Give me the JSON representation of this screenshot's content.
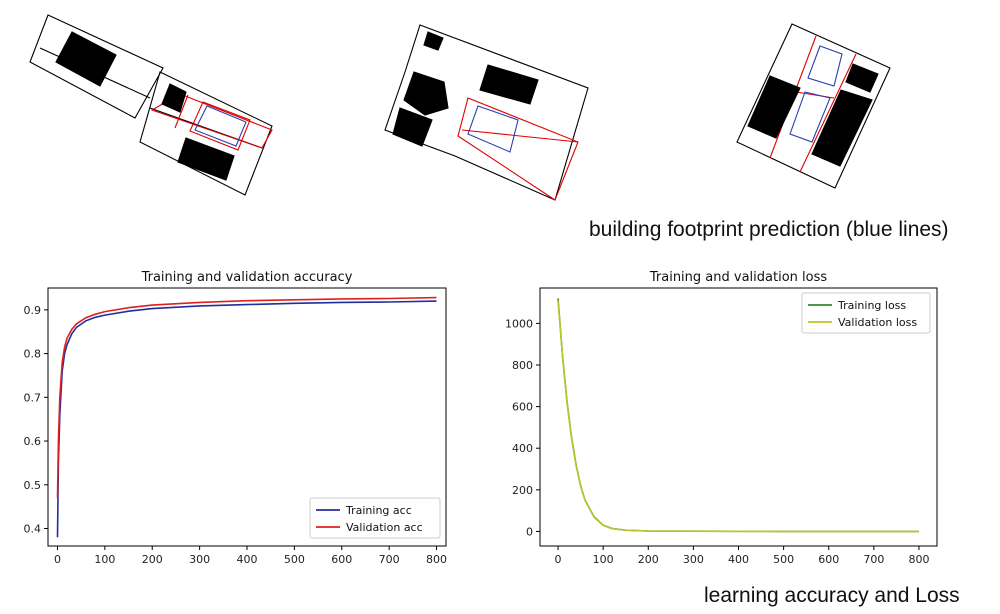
{
  "captions": {
    "footprint": "building footprint prediction (blue lines)",
    "learning": "learning accuracy and Loss"
  },
  "colors": {
    "parcel": "#000000",
    "prediction": "#2a3fb0",
    "lot": "#e00000",
    "building": "#000000",
    "training_acc": "#1f2f9c",
    "validation_acc": "#e02020",
    "training_loss": "#2e8b2e",
    "validation_loss": "#bcc62a"
  },
  "chart_data": [
    {
      "type": "line",
      "title": "Training and validation accuracy",
      "xlabel": "",
      "ylabel": "",
      "xlim": [
        -20,
        820
      ],
      "ylim": [
        0.36,
        0.95
      ],
      "xticks": [
        0,
        100,
        200,
        300,
        400,
        500,
        600,
        700,
        800
      ],
      "yticks": [
        0.4,
        0.5,
        0.6,
        0.7,
        0.8,
        0.9
      ],
      "legend": "lower-right",
      "series": [
        {
          "name": "Training acc",
          "color": "#1f2f9c",
          "x": [
            0,
            2,
            5,
            10,
            15,
            20,
            30,
            40,
            60,
            80,
            100,
            150,
            200,
            300,
            400,
            500,
            600,
            700,
            800
          ],
          "y": [
            0.38,
            0.55,
            0.66,
            0.76,
            0.8,
            0.82,
            0.845,
            0.86,
            0.875,
            0.883,
            0.888,
            0.897,
            0.903,
            0.909,
            0.912,
            0.915,
            0.917,
            0.918,
            0.92
          ]
        },
        {
          "name": "Validation acc",
          "color": "#e02020",
          "x": [
            0,
            2,
            5,
            10,
            15,
            20,
            30,
            40,
            60,
            80,
            100,
            150,
            200,
            300,
            400,
            500,
            600,
            700,
            800
          ],
          "y": [
            0.47,
            0.6,
            0.7,
            0.78,
            0.815,
            0.835,
            0.855,
            0.868,
            0.882,
            0.89,
            0.896,
            0.905,
            0.911,
            0.917,
            0.921,
            0.923,
            0.925,
            0.926,
            0.928
          ]
        }
      ]
    },
    {
      "type": "line",
      "title": "Training and validation loss",
      "xlabel": "",
      "ylabel": "",
      "xlim": [
        -40,
        840
      ],
      "ylim": [
        -70,
        1170
      ],
      "xticks": [
        0,
        100,
        200,
        300,
        400,
        500,
        600,
        700,
        800
      ],
      "yticks": [
        0,
        200,
        400,
        600,
        800,
        1000
      ],
      "legend": "upper-right",
      "series": [
        {
          "name": "Training loss",
          "color": "#2e8b2e",
          "x": [
            0,
            5,
            10,
            20,
            30,
            40,
            50,
            60,
            80,
            100,
            120,
            150,
            200,
            300,
            400,
            500,
            600,
            700,
            800
          ],
          "y": [
            1120,
            980,
            840,
            620,
            450,
            320,
            220,
            150,
            70,
            30,
            14,
            6,
            2,
            1,
            0.5,
            0.3,
            0.2,
            0.1,
            0.1
          ]
        },
        {
          "name": "Validation loss",
          "color": "#bcc62a",
          "x": [
            0,
            5,
            10,
            20,
            30,
            40,
            50,
            60,
            80,
            100,
            120,
            150,
            200,
            300,
            400,
            500,
            600,
            700,
            800
          ],
          "y": [
            1110,
            975,
            835,
            615,
            445,
            316,
            218,
            148,
            68,
            29,
            13,
            6,
            2,
            1,
            0.5,
            0.3,
            0.2,
            0.1,
            0.1
          ]
        }
      ]
    }
  ]
}
